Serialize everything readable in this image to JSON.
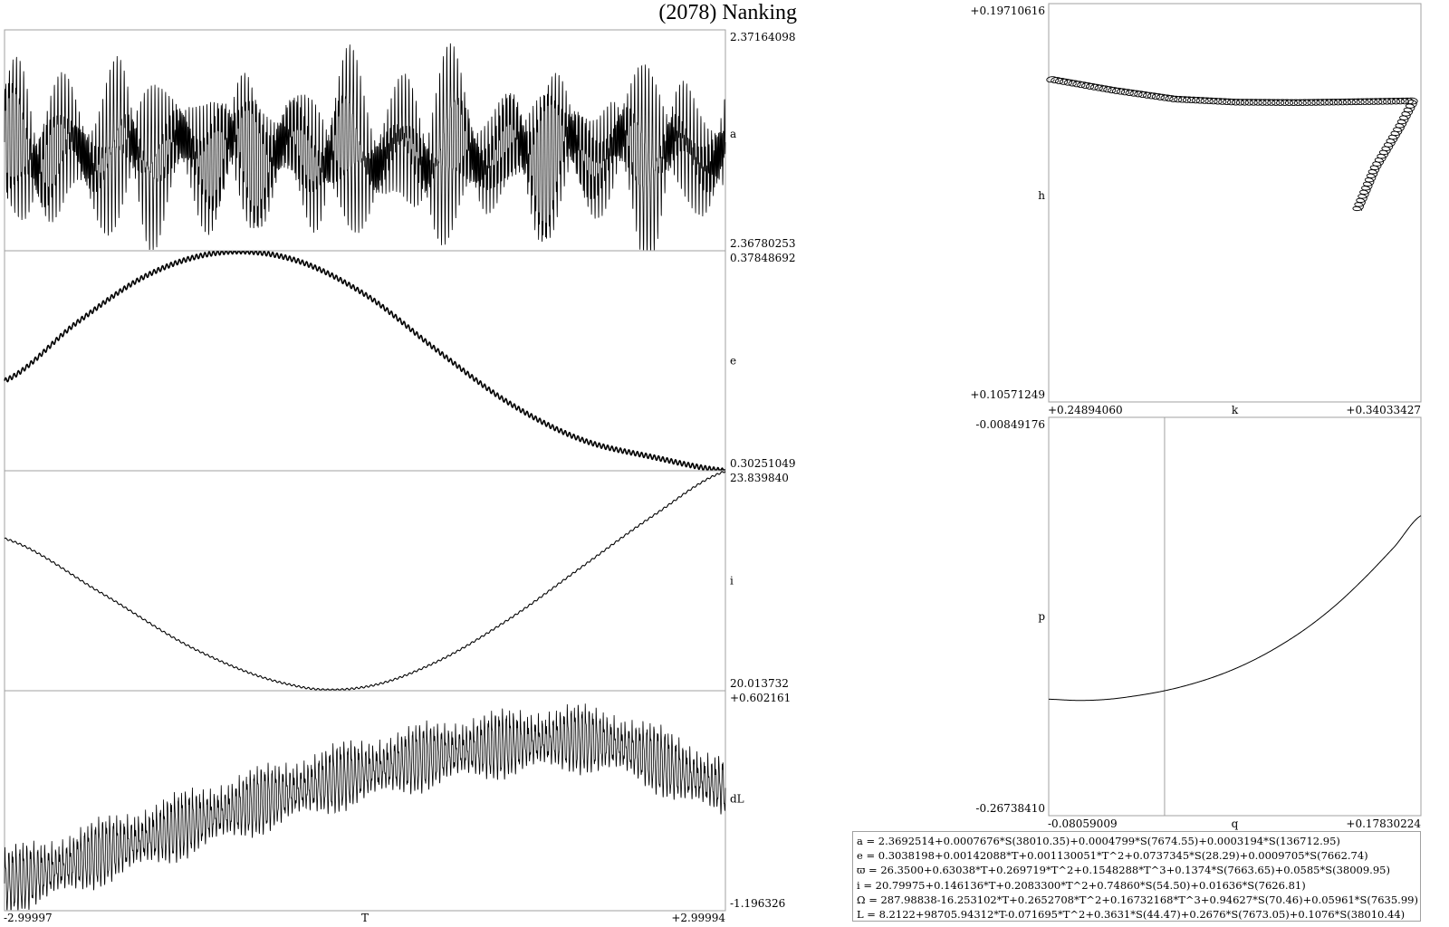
{
  "title": "(2078) Nanking",
  "chart_data": [
    {
      "type": "line",
      "name": "a",
      "ylabel": "a",
      "ymax_label": "2.37164098",
      "ymin_label": "2.36780253",
      "ylim": [
        2.36780253,
        2.37164098
      ],
      "x_range": [
        -2.99997,
        2.99994
      ],
      "model": {
        "mean": 2.36952,
        "short_period_amp": 0.0014,
        "short_cycles": 200,
        "mid_amp": 0.0003,
        "mid_cycles": 13
      }
    },
    {
      "type": "line",
      "name": "e",
      "ylabel": "e",
      "ymax_label": "0.37848692",
      "ymin_label": "0.30251049",
      "ylim": [
        0.30251049,
        0.37848692
      ],
      "x_range": [
        -2.99997,
        2.99994
      ],
      "points": [
        [
          -2.99997,
          0.3336
        ],
        [
          -2.4,
          0.3536
        ],
        [
          -1.8,
          0.3703
        ],
        [
          -1.2,
          0.3779
        ],
        [
          -0.6,
          0.3755
        ],
        [
          0.0,
          0.3634
        ],
        [
          0.6,
          0.3441
        ],
        [
          1.2,
          0.3259
        ],
        [
          1.8,
          0.3133
        ],
        [
          2.4,
          0.3072
        ],
        [
          2.99994,
          0.3025
        ]
      ],
      "ripple_amp": 0.0008,
      "ripple_cycles": 170
    },
    {
      "type": "line",
      "name": "i",
      "ylabel": "i",
      "ymax_label": "23.839840",
      "ymin_label": "20.013732",
      "ylim": [
        20.013732,
        23.83984
      ],
      "x_range": [
        -2.99997,
        2.99994
      ],
      "points": [
        [
          -2.99997,
          22.66
        ],
        [
          -2.2,
          21.72
        ],
        [
          -1.4,
          20.72
        ],
        [
          -0.6,
          20.11
        ],
        [
          0.0,
          20.08
        ],
        [
          0.6,
          20.52
        ],
        [
          1.2,
          21.26
        ],
        [
          1.8,
          22.16
        ],
        [
          2.4,
          23.06
        ],
        [
          2.99994,
          23.83
        ]
      ],
      "ripple_amp": 0.015,
      "ripple_cycles": 150
    },
    {
      "type": "line",
      "name": "dL",
      "ylabel": "dL",
      "ymax_label": "+0.602161",
      "ymin_label": "-1.196326",
      "ylim": [
        -1.196326,
        0.602161
      ],
      "x_range": [
        -2.99997,
        2.99994
      ],
      "xlabel": "T",
      "xmin_label": "-2.99997",
      "xmax_label": "+2.99994",
      "trend": [
        [
          -2.99997,
          -0.98
        ],
        [
          -2.0,
          -0.68
        ],
        [
          -1.0,
          -0.36
        ],
        [
          0.0,
          -0.08
        ],
        [
          1.0,
          0.12
        ],
        [
          2.0,
          0.16
        ],
        [
          2.99994,
          -0.2
        ]
      ],
      "osc_amp": 0.22,
      "osc_cycles": 200
    },
    {
      "type": "scatter",
      "name": "h-k",
      "xlabel": "k",
      "ylabel": "h",
      "xmin_label": "+0.24894060",
      "xmax_label": "+0.34033427",
      "ymax_label": "+0.19710616",
      "ymin_label": "+0.10571249",
      "xlim": [
        0.2489406,
        0.34033427
      ],
      "ylim": [
        0.10571249,
        0.19710616
      ],
      "path": [
        [
          0.2491,
          0.1798
        ],
        [
          0.265,
          0.1772
        ],
        [
          0.28,
          0.1752
        ],
        [
          0.295,
          0.1745
        ],
        [
          0.31,
          0.1744
        ],
        [
          0.325,
          0.1746
        ],
        [
          0.3385,
          0.1748
        ],
        [
          0.335,
          0.1686
        ],
        [
          0.329,
          0.1593
        ],
        [
          0.3246,
          0.1496
        ]
      ],
      "loop_radius": 0.0009
    },
    {
      "type": "line",
      "name": "p-q",
      "xlabel": "q",
      "ylabel": "p",
      "xmin_label": "-0.08059009",
      "xmax_label": "+0.17830224",
      "ymax_label": "-0.00849176",
      "ymin_label": "-0.26738410",
      "xlim": [
        -0.08059009,
        0.17830224
      ],
      "ylim": [
        -0.2673841,
        -0.00849176
      ],
      "points": [
        [
          -0.0806,
          -0.1917
        ],
        [
          -0.06,
          -0.1925
        ],
        [
          -0.04,
          -0.1918
        ],
        [
          -0.02,
          -0.1895
        ],
        [
          0.0,
          -0.1862
        ],
        [
          0.02,
          -0.1815
        ],
        [
          0.04,
          -0.1753
        ],
        [
          0.06,
          -0.1672
        ],
        [
          0.08,
          -0.157
        ],
        [
          0.1,
          -0.1447
        ],
        [
          0.12,
          -0.1298
        ],
        [
          0.14,
          -0.1121
        ],
        [
          0.16,
          -0.0925
        ],
        [
          0.1783,
          -0.0724
        ]
      ],
      "vline_x": 0.0
    }
  ],
  "formulas": [
    "a = 2.3692514+0.0007676*S(38010.35)+0.0004799*S(7674.55)+0.0003194*S(136712.95)",
    "e = 0.3038198+0.00142088*T+0.001130051*T^2+0.0737345*S(28.29)+0.0009705*S(7662.74)",
    "ϖ = 26.3500+0.63038*T+0.269719*T^2+0.1548288*T^3+0.1374*S(7663.65)+0.0585*S(38009.95)",
    "i = 20.79975+0.146136*T+0.2083300*T^2+0.74860*S(54.50)+0.01636*S(7626.81)",
    "Ω = 287.98838-16.253102*T+0.2652708*T^2+0.16732168*T^3+0.94627*S(70.46)+0.05961*S(7635.99)",
    "L = 8.2122+98705.94312*T-0.071695*T^2+0.3631*S(44.47)+0.2676*S(7673.05)+0.1076*S(38010.44)"
  ]
}
